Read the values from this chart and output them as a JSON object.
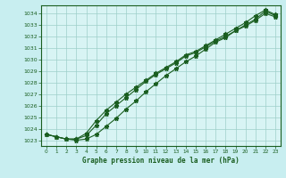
{
  "title": "Graphe pression niveau de la mer (hPa)",
  "background_color": "#c8eef0",
  "plot_bg_color": "#d8f4f4",
  "grid_color": "#9ecfca",
  "line_color": "#1a5e20",
  "xlim": [
    -0.5,
    23.5
  ],
  "ylim": [
    1022.5,
    1034.7
  ],
  "yticks": [
    1023,
    1024,
    1025,
    1026,
    1027,
    1028,
    1029,
    1030,
    1031,
    1032,
    1033,
    1034
  ],
  "xticks": [
    0,
    1,
    2,
    3,
    4,
    5,
    6,
    7,
    8,
    9,
    10,
    11,
    12,
    13,
    14,
    15,
    16,
    17,
    18,
    19,
    20,
    21,
    22,
    23
  ],
  "line1_x": [
    0,
    1,
    2,
    3,
    4,
    5,
    6,
    7,
    8,
    9,
    10,
    11,
    12,
    13,
    14,
    15,
    16,
    17,
    18,
    19,
    20,
    21,
    22,
    23
  ],
  "line1_y": [
    1023.5,
    1023.3,
    1023.1,
    1023.1,
    1023.4,
    1024.3,
    1025.3,
    1026.0,
    1026.7,
    1027.4,
    1028.1,
    1028.7,
    1029.2,
    1029.7,
    1030.3,
    1030.6,
    1031.1,
    1031.6,
    1032.0,
    1032.5,
    1033.0,
    1033.5,
    1034.2,
    1033.8
  ],
  "line2_x": [
    0,
    1,
    2,
    3,
    4,
    5,
    6,
    7,
    8,
    9,
    10,
    11,
    12,
    13,
    14,
    15,
    16,
    17,
    18,
    19,
    20,
    21,
    22,
    23
  ],
  "line2_y": [
    1023.5,
    1023.3,
    1023.1,
    1023.0,
    1023.1,
    1023.5,
    1024.2,
    1024.9,
    1025.7,
    1026.4,
    1027.2,
    1027.9,
    1028.6,
    1029.2,
    1029.8,
    1030.3,
    1030.9,
    1031.5,
    1031.9,
    1032.5,
    1032.9,
    1033.4,
    1034.0,
    1033.7
  ],
  "line3_x": [
    0,
    1,
    2,
    3,
    4,
    5,
    6,
    7,
    8,
    9,
    10,
    11,
    12,
    13,
    14,
    15,
    16,
    17,
    18,
    19,
    20,
    21,
    22,
    23
  ],
  "line3_y": [
    1023.5,
    1023.3,
    1023.1,
    1023.1,
    1023.6,
    1024.7,
    1025.6,
    1026.3,
    1027.0,
    1027.6,
    1028.2,
    1028.8,
    1029.3,
    1029.8,
    1030.4,
    1030.7,
    1031.2,
    1031.7,
    1032.2,
    1032.7,
    1033.2,
    1033.8,
    1034.3,
    1033.9
  ]
}
